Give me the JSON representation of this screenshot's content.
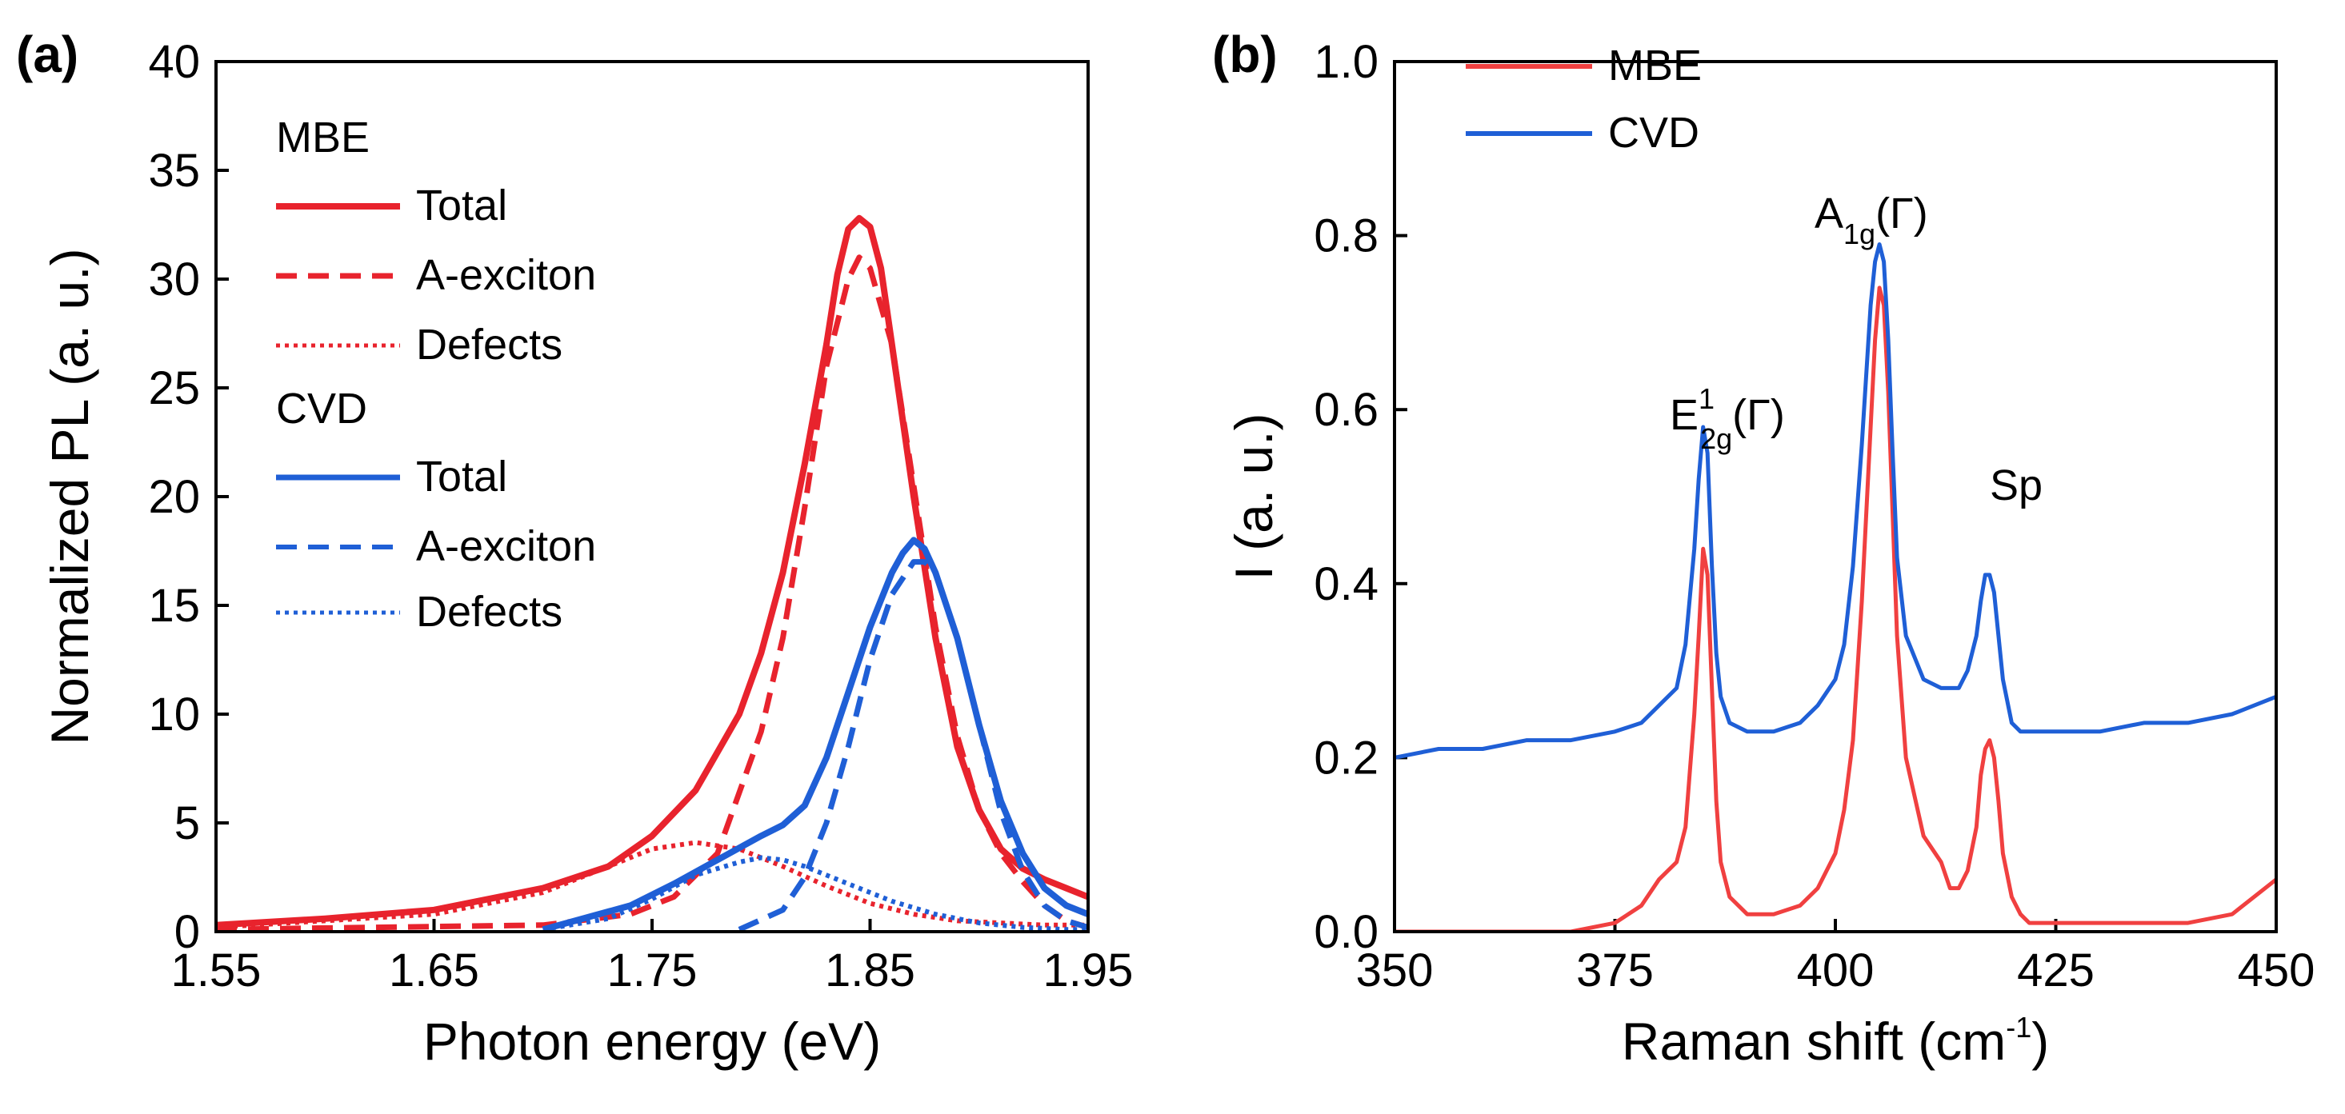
{
  "chart_data": [
    {
      "type": "line",
      "panel_label": "(a)",
      "xlabel": "Photon energy (eV)",
      "ylabel": "Normalized PL (a. u.)",
      "xlim": [
        1.55,
        1.95
      ],
      "ylim": [
        0,
        40
      ],
      "xticks": [
        1.55,
        1.65,
        1.75,
        1.85,
        1.95
      ],
      "xtick_labels": [
        "1.55",
        "1.65",
        "1.75",
        "1.85",
        "1.95"
      ],
      "yticks": [
        0,
        5,
        10,
        15,
        20,
        25,
        30,
        35,
        40
      ],
      "ytick_labels": [
        "0",
        "5",
        "10",
        "15",
        "20",
        "25",
        "30",
        "35",
        "40"
      ],
      "legend": {
        "position": "top-left",
        "groups": [
          {
            "title": "MBE",
            "entries": [
              {
                "label": "Total",
                "color": "#e8232d",
                "style": "solid"
              },
              {
                "label": "A-exciton",
                "color": "#e8232d",
                "style": "dashed"
              },
              {
                "label": "Defects",
                "color": "#e8232d",
                "style": "dotted"
              }
            ]
          },
          {
            "title": "CVD",
            "entries": [
              {
                "label": "Total",
                "color": "#1f5fd6",
                "style": "solid"
              },
              {
                "label": "A-exciton",
                "color": "#1f5fd6",
                "style": "dashed"
              },
              {
                "label": "Defects",
                "color": "#1f5fd6",
                "style": "dotted"
              }
            ]
          }
        ]
      },
      "series": [
        {
          "name": "MBE Total",
          "color": "#e8232d",
          "style": "solid",
          "width": 8,
          "x": [
            1.55,
            1.6,
            1.65,
            1.7,
            1.73,
            1.75,
            1.77,
            1.79,
            1.8,
            1.81,
            1.82,
            1.83,
            1.835,
            1.84,
            1.845,
            1.85,
            1.855,
            1.86,
            1.87,
            1.88,
            1.89,
            1.9,
            1.91,
            1.92,
            1.93,
            1.94,
            1.95
          ],
          "y": [
            0.3,
            0.6,
            1.0,
            2.0,
            3.0,
            4.4,
            6.5,
            10.0,
            12.8,
            16.5,
            21.5,
            27.0,
            30.2,
            32.3,
            32.8,
            32.4,
            30.5,
            27.0,
            20.0,
            13.5,
            8.5,
            5.6,
            3.8,
            2.9,
            2.4,
            2.0,
            1.6
          ]
        },
        {
          "name": "MBE A-exciton",
          "color": "#e8232d",
          "style": "dashed",
          "width": 7,
          "x": [
            1.55,
            1.7,
            1.74,
            1.76,
            1.78,
            1.8,
            1.81,
            1.82,
            1.83,
            1.84,
            1.845,
            1.85,
            1.86,
            1.87,
            1.88,
            1.89,
            1.9,
            1.91,
            1.92,
            1.93,
            1.94,
            1.95
          ],
          "y": [
            0.1,
            0.3,
            0.8,
            1.6,
            3.6,
            9.2,
            13.5,
            19.5,
            26.0,
            30.0,
            31.0,
            30.5,
            27.0,
            20.5,
            14.0,
            9.0,
            5.6,
            3.6,
            2.3,
            1.2,
            0.5,
            0.2
          ]
        },
        {
          "name": "MBE Defects",
          "color": "#e8232d",
          "style": "dotted",
          "width": 6,
          "x": [
            1.55,
            1.65,
            1.7,
            1.73,
            1.75,
            1.77,
            1.79,
            1.81,
            1.83,
            1.85,
            1.87,
            1.89,
            1.91,
            1.93,
            1.95
          ],
          "y": [
            0.2,
            0.8,
            1.8,
            3.0,
            3.8,
            4.1,
            3.8,
            3.0,
            2.1,
            1.3,
            0.8,
            0.5,
            0.4,
            0.3,
            0.3
          ]
        },
        {
          "name": "CVD Total",
          "color": "#1f5fd6",
          "style": "solid",
          "width": 8,
          "x": [
            1.7,
            1.74,
            1.76,
            1.78,
            1.8,
            1.81,
            1.82,
            1.83,
            1.84,
            1.85,
            1.86,
            1.865,
            1.87,
            1.875,
            1.88,
            1.89,
            1.9,
            1.91,
            1.92,
            1.93,
            1.94,
            1.95
          ],
          "y": [
            0.1,
            1.2,
            2.2,
            3.3,
            4.4,
            4.9,
            5.8,
            8.0,
            11.0,
            14.0,
            16.5,
            17.4,
            18.0,
            17.6,
            16.5,
            13.5,
            9.5,
            6.0,
            3.6,
            2.0,
            1.2,
            0.8
          ]
        },
        {
          "name": "CVD A-exciton",
          "color": "#1f5fd6",
          "style": "dashed",
          "width": 7,
          "x": [
            1.79,
            1.81,
            1.82,
            1.83,
            1.84,
            1.85,
            1.86,
            1.87,
            1.875,
            1.88,
            1.89,
            1.9,
            1.91,
            1.92,
            1.93,
            1.94,
            1.95
          ],
          "y": [
            0.1,
            1.0,
            2.5,
            5.0,
            8.5,
            12.5,
            15.5,
            17.0,
            17.0,
            16.5,
            13.5,
            9.5,
            5.5,
            2.8,
            1.2,
            0.5,
            0.2
          ]
        },
        {
          "name": "CVD Defects",
          "color": "#1f5fd6",
          "style": "dotted",
          "width": 6,
          "x": [
            1.7,
            1.73,
            1.75,
            1.77,
            1.79,
            1.8,
            1.81,
            1.82,
            1.84,
            1.86,
            1.88,
            1.9,
            1.92,
            1.94,
            1.95
          ],
          "y": [
            0.1,
            0.6,
            1.5,
            2.6,
            3.2,
            3.4,
            3.3,
            3.0,
            2.2,
            1.4,
            0.8,
            0.4,
            0.2,
            0.1,
            0.1
          ]
        }
      ]
    },
    {
      "type": "line",
      "panel_label": "(b)",
      "xlabel": "Raman shift (cm",
      "xlabel_sup": "-1",
      "xlabel_end": ")",
      "ylabel": "I (a. u.)",
      "xlim": [
        350,
        450
      ],
      "ylim": [
        0,
        1.0
      ],
      "xticks": [
        350,
        375,
        400,
        425,
        450
      ],
      "xtick_labels": [
        "350",
        "375",
        "400",
        "425",
        "450"
      ],
      "yticks": [
        0,
        0.2,
        0.4,
        0.6,
        0.8,
        1.0
      ],
      "ytick_labels": [
        "0.0",
        "0.2",
        "0.4",
        "0.6",
        "0.8",
        "1.0"
      ],
      "legend": {
        "position": "top-left",
        "entries": [
          {
            "label": "MBE",
            "color": "#f04040"
          },
          {
            "label": "CVD",
            "color": "#1f5fd6"
          }
        ]
      },
      "annotations": [
        {
          "base": "E",
          "sup": "1",
          "sub": "2g",
          "suffix": "(Γ)",
          "x": 385.5,
          "y": 0.62
        },
        {
          "base": "A",
          "sub": "1g",
          "suffix": "(Γ)",
          "x": 405,
          "y": 0.83
        },
        {
          "base": "Sp",
          "x": 417.5,
          "y": 0.45
        }
      ],
      "series": [
        {
          "name": "MBE",
          "color": "#f04040",
          "width": 5,
          "x": [
            350,
            355,
            360,
            365,
            370,
            375,
            378,
            380,
            382,
            383,
            384,
            384.5,
            385,
            385.5,
            386,
            386.5,
            387,
            388,
            390,
            393,
            396,
            398,
            400,
            401,
            402,
            403,
            404,
            404.5,
            405,
            405.5,
            406,
            406.5,
            407,
            408,
            410,
            412,
            413,
            414,
            415,
            416,
            416.5,
            417,
            417.5,
            418,
            418.5,
            419,
            420,
            421,
            422,
            425,
            430,
            435,
            440,
            445,
            450
          ],
          "y": [
            0.0,
            0.0,
            0.0,
            0.0,
            0.0,
            0.01,
            0.03,
            0.06,
            0.08,
            0.12,
            0.25,
            0.34,
            0.44,
            0.41,
            0.28,
            0.15,
            0.08,
            0.04,
            0.02,
            0.02,
            0.03,
            0.05,
            0.09,
            0.14,
            0.22,
            0.38,
            0.58,
            0.68,
            0.74,
            0.72,
            0.62,
            0.48,
            0.34,
            0.2,
            0.11,
            0.08,
            0.05,
            0.05,
            0.07,
            0.12,
            0.18,
            0.21,
            0.22,
            0.2,
            0.15,
            0.09,
            0.04,
            0.02,
            0.01,
            0.01,
            0.01,
            0.01,
            0.01,
            0.02,
            0.06
          ]
        },
        {
          "name": "CVD",
          "color": "#1f5fd6",
          "width": 5,
          "x": [
            350,
            355,
            360,
            365,
            370,
            375,
            378,
            380,
            382,
            383,
            384,
            384.5,
            385,
            385.5,
            386,
            386.5,
            387,
            388,
            390,
            393,
            396,
            398,
            400,
            401,
            402,
            403,
            404,
            404.5,
            405,
            405.5,
            406,
            406.5,
            407,
            408,
            410,
            412,
            413,
            414,
            415,
            416,
            416.5,
            417,
            417.5,
            418,
            418.5,
            419,
            420,
            421,
            422,
            425,
            430,
            435,
            440,
            445,
            450
          ],
          "y": [
            0.2,
            0.21,
            0.21,
            0.22,
            0.22,
            0.23,
            0.24,
            0.26,
            0.28,
            0.33,
            0.44,
            0.52,
            0.58,
            0.55,
            0.42,
            0.32,
            0.27,
            0.24,
            0.23,
            0.23,
            0.24,
            0.26,
            0.29,
            0.33,
            0.42,
            0.56,
            0.72,
            0.77,
            0.79,
            0.77,
            0.68,
            0.55,
            0.43,
            0.34,
            0.29,
            0.28,
            0.28,
            0.28,
            0.3,
            0.34,
            0.38,
            0.41,
            0.41,
            0.39,
            0.34,
            0.29,
            0.24,
            0.23,
            0.23,
            0.23,
            0.23,
            0.24,
            0.24,
            0.25,
            0.27
          ]
        }
      ]
    }
  ]
}
